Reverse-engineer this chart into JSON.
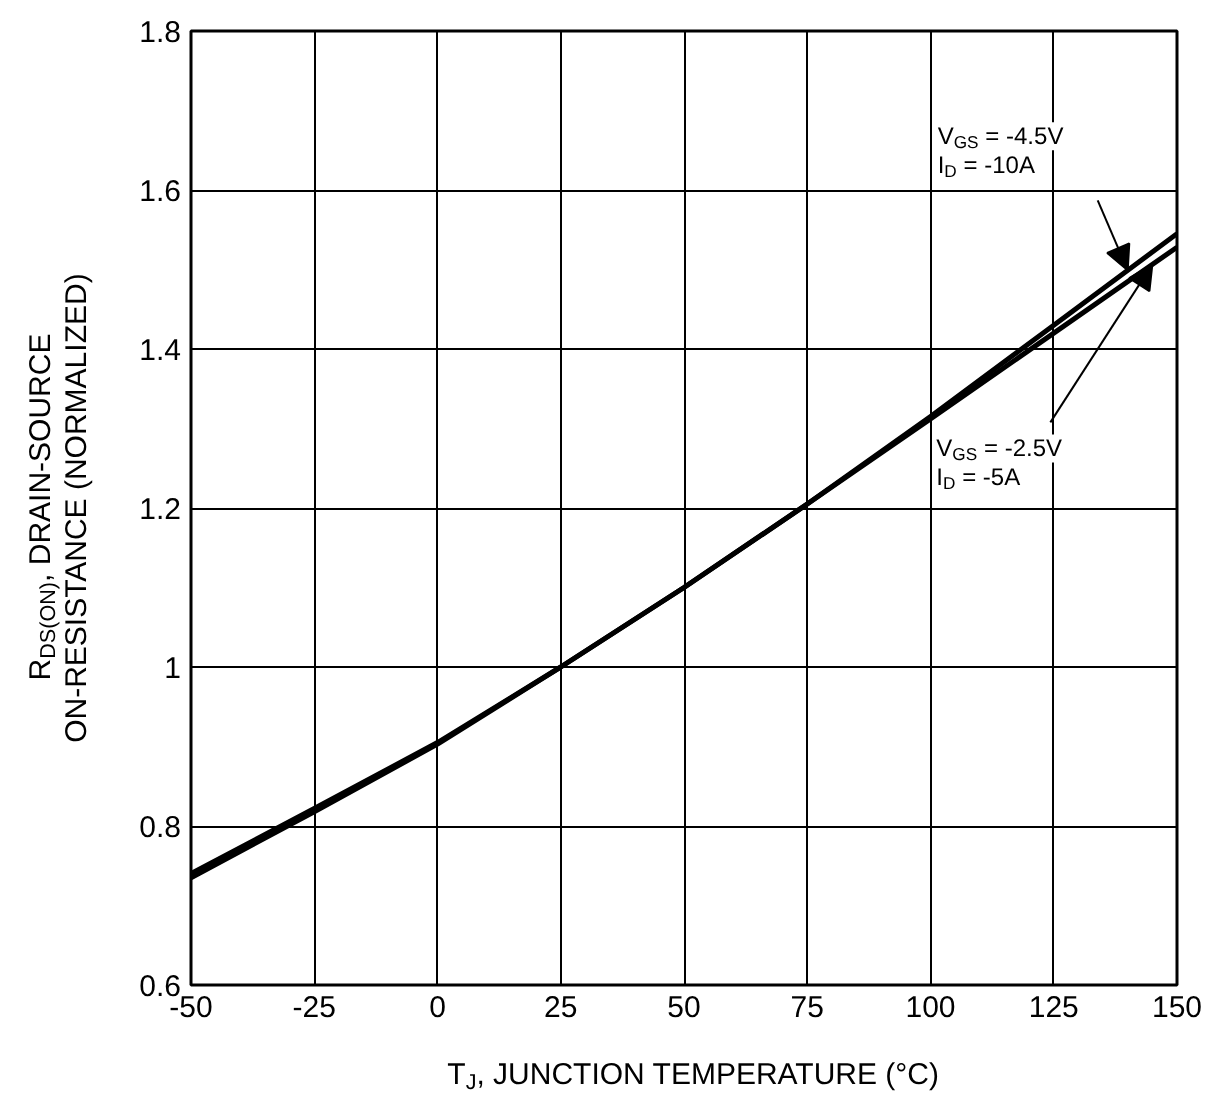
{
  "chart_data": {
    "type": "line",
    "xlabel": "T$_{J}$, JUNCTION TEMPERATURE (°C)",
    "ylabel": "R$_{DS(ON)}$, DRAIN-SOURCE\nON-RESISTANCE (NORMALIZED)",
    "x": [
      -50,
      -25,
      0,
      25,
      50,
      75,
      100,
      125,
      150
    ],
    "series": [
      {
        "color": "#000000",
        "values": [
          0.74,
          0.822,
          0.905,
          1.0,
          1.1,
          1.205,
          1.315,
          1.43,
          1.545
        ]
      },
      {
        "color": "#000000",
        "values": [
          0.735,
          0.818,
          0.903,
          1.0,
          1.1,
          1.205,
          1.312,
          1.42,
          1.528
        ]
      }
    ],
    "xlim": [
      -50,
      150
    ],
    "xticks": [
      -50,
      -25,
      0,
      25,
      50,
      75,
      100,
      125,
      150
    ],
    "ylim": [
      0.6,
      1.8
    ],
    "yticks": [
      0.6,
      {
        "value": 0.8,
        "label": "0.8"
      },
      1,
      {
        "value": 1.2,
        "label": "1.2"
      },
      {
        "value": 1.4,
        "label": "1.4"
      },
      {
        "value": 1.6,
        "label": "1.6"
      },
      {
        "value": 1.8,
        "label": "1.8"
      }
    ],
    "grid": true,
    "line_style": "solid",
    "annotations": [
      "V$_{GS}$ = -4.5V\nI$_{D}$ = -10A",
      "V$_{GS}$ = -2.5V\nI$_{D}$ = -5A"
    ]
  }
}
